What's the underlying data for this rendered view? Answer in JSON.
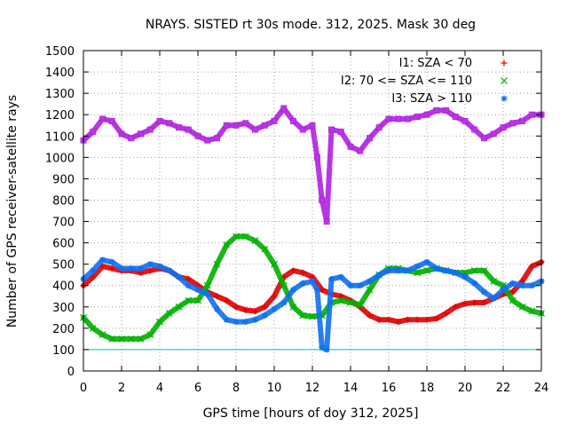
{
  "chart_data": {
    "type": "scatter",
    "title": "NRAYS. SISTED rt 30s mode. 312, 2025. Mask 30 deg",
    "xlabel": "GPS time [hours of doy 312, 2025]",
    "ylabel": "Number of GPS receiver-satellite rays",
    "xlim": [
      0,
      24
    ],
    "ylim": [
      0,
      1500
    ],
    "xticks": [
      "0",
      "2",
      "4",
      "6",
      "8",
      "10",
      "12",
      "14",
      "16",
      "18",
      "20",
      "22",
      "24"
    ],
    "yticks": [
      "0",
      "100",
      "200",
      "300",
      "400",
      "500",
      "600",
      "700",
      "800",
      "900",
      "1000",
      "1100",
      "1200",
      "1300",
      "1400",
      "1500"
    ],
    "grid": true,
    "legend_position": "top-right",
    "reference_line": {
      "y": 100,
      "color": "#00c0c0"
    },
    "series": [
      {
        "name": "I1: SZA < 70",
        "color": "#e00000",
        "marker": "+",
        "x": [
          0,
          0.5,
          1,
          1.5,
          2,
          2.5,
          3,
          3.5,
          4,
          4.5,
          5,
          5.5,
          6,
          6.5,
          7,
          7.5,
          8,
          8.5,
          9,
          9.5,
          10,
          10.5,
          11,
          11.5,
          12,
          12.5,
          13,
          13.5,
          14,
          14.5,
          15,
          15.5,
          16,
          16.5,
          17,
          17.5,
          18,
          18.5,
          19,
          19.5,
          20,
          20.5,
          21,
          21.5,
          22,
          22.5,
          23,
          23.5,
          24
        ],
        "y": [
          400,
          440,
          490,
          480,
          470,
          470,
          460,
          470,
          480,
          470,
          440,
          430,
          400,
          370,
          350,
          330,
          300,
          285,
          280,
          300,
          350,
          440,
          470,
          460,
          440,
          380,
          360,
          350,
          330,
          300,
          260,
          240,
          240,
          230,
          240,
          240,
          240,
          245,
          270,
          300,
          315,
          320,
          320,
          340,
          360,
          370,
          420,
          490,
          510
        ]
      },
      {
        "name": "I2: 70 <= SZA <= 110",
        "color": "#00b000",
        "marker": "x",
        "x": [
          0,
          0.5,
          1,
          1.5,
          2,
          2.5,
          3,
          3.5,
          4,
          4.5,
          5,
          5.5,
          6,
          6.5,
          7,
          7.5,
          8,
          8.5,
          9,
          9.5,
          10,
          10.5,
          11,
          11.5,
          12,
          12.5,
          13,
          13.5,
          14,
          14.5,
          15,
          15.5,
          16,
          16.5,
          17,
          17.5,
          18,
          18.5,
          19,
          19.5,
          20,
          20.5,
          21,
          21.5,
          22,
          22.5,
          23,
          23.5,
          24
        ],
        "y": [
          250,
          200,
          170,
          150,
          150,
          150,
          150,
          170,
          230,
          270,
          300,
          330,
          330,
          400,
          500,
          590,
          630,
          630,
          610,
          570,
          500,
          400,
          300,
          260,
          255,
          260,
          320,
          330,
          320,
          310,
          380,
          450,
          480,
          480,
          470,
          460,
          470,
          480,
          470,
          460,
          460,
          470,
          470,
          420,
          400,
          330,
          300,
          280,
          270
        ]
      },
      {
        "name": "I3: SZA > 110",
        "color": "#1070f0",
        "marker": "*",
        "x": [
          0,
          0.5,
          1,
          1.5,
          2,
          2.5,
          3,
          3.5,
          4,
          4.5,
          5,
          5.5,
          6,
          6.5,
          7,
          7.5,
          8,
          8.5,
          9,
          9.5,
          10,
          10.5,
          11,
          11.5,
          12,
          12.25,
          12.5,
          12.75,
          13,
          13.5,
          14,
          14.5,
          15,
          15.5,
          16,
          16.5,
          17,
          17.5,
          18,
          18.5,
          19,
          19.5,
          20,
          20.5,
          21,
          21.5,
          22,
          22.5,
          23,
          23.5,
          24
        ],
        "y": [
          430,
          470,
          520,
          510,
          480,
          480,
          480,
          500,
          490,
          470,
          440,
          400,
          380,
          360,
          290,
          240,
          230,
          230,
          240,
          260,
          290,
          320,
          380,
          410,
          420,
          380,
          110,
          100,
          430,
          440,
          400,
          400,
          420,
          450,
          470,
          470,
          470,
          490,
          510,
          480,
          470,
          460,
          440,
          410,
          370,
          340,
          380,
          410,
          400,
          400,
          420
        ]
      },
      {
        "name": "",
        "color": "#b020e0",
        "marker": "square",
        "x": [
          0,
          0.5,
          1,
          1.5,
          2,
          2.5,
          3,
          3.5,
          4,
          4.5,
          5,
          5.5,
          6,
          6.5,
          7,
          7.5,
          8,
          8.5,
          9,
          9.5,
          10,
          10.5,
          11,
          11.5,
          12,
          12.25,
          12.5,
          12.75,
          13,
          13.5,
          14,
          14.5,
          15,
          15.5,
          16,
          16.5,
          17,
          17.5,
          18,
          18.5,
          19,
          19.5,
          20,
          20.5,
          21,
          21.5,
          22,
          22.5,
          23,
          23.5,
          24
        ],
        "y": [
          1080,
          1120,
          1180,
          1170,
          1110,
          1090,
          1110,
          1130,
          1170,
          1160,
          1140,
          1130,
          1100,
          1080,
          1090,
          1150,
          1150,
          1160,
          1130,
          1150,
          1170,
          1230,
          1170,
          1130,
          1150,
          1000,
          800,
          700,
          1130,
          1120,
          1050,
          1030,
          1090,
          1140,
          1180,
          1180,
          1180,
          1190,
          1200,
          1220,
          1220,
          1190,
          1170,
          1130,
          1090,
          1110,
          1140,
          1160,
          1170,
          1200,
          1200
        ]
      }
    ]
  }
}
